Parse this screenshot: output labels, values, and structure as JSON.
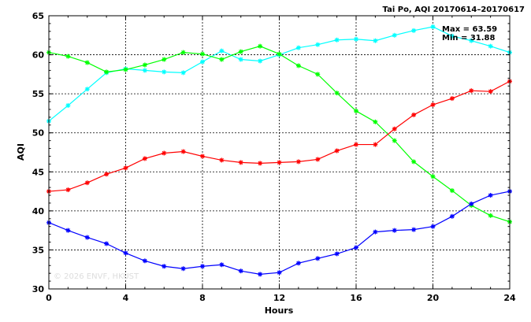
{
  "chart_data": {
    "type": "line",
    "title": "Tai Po, AQI 20170614–20170617",
    "xlabel": "Hours",
    "ylabel": "AQI",
    "xlim": [
      0,
      24
    ],
    "ylim": [
      30,
      65
    ],
    "x_ticks": [
      0,
      4,
      8,
      12,
      16,
      20,
      24
    ],
    "y_ticks": [
      30,
      35,
      40,
      45,
      50,
      55,
      60,
      65
    ],
    "grid": true,
    "annotations": {
      "max_text": "Max = 63.59",
      "min_text": "Min = 31.88"
    },
    "watermark": "© 2026  ENVF, HKUST",
    "x": [
      0,
      1,
      2,
      3,
      4,
      5,
      6,
      7,
      8,
      9,
      10,
      11,
      12,
      13,
      14,
      15,
      16,
      17,
      18,
      19,
      20,
      21,
      22,
      23,
      24
    ],
    "series": [
      {
        "color": "#00ffff",
        "values": [
          51.5,
          53.5,
          55.6,
          57.7,
          58.2,
          58.0,
          57.8,
          57.7,
          59.1,
          60.5,
          59.4,
          59.2,
          60.0,
          60.9,
          61.3,
          61.9,
          62.0,
          61.8,
          62.5,
          63.1,
          63.59,
          62.4,
          61.8,
          61.1,
          60.3
        ]
      },
      {
        "color": "#00ff00",
        "values": [
          60.3,
          59.8,
          59.0,
          57.8,
          58.1,
          58.7,
          59.4,
          60.3,
          60.1,
          59.4,
          60.4,
          61.1,
          60.1,
          58.6,
          57.5,
          55.1,
          52.8,
          51.4,
          49.0,
          46.3,
          44.4,
          42.6,
          40.7,
          39.4,
          38.6
        ]
      },
      {
        "color": "#ff0000",
        "values": [
          42.5,
          42.7,
          43.6,
          44.7,
          45.5,
          46.7,
          47.4,
          47.6,
          47.0,
          46.5,
          46.2,
          46.1,
          46.2,
          46.3,
          46.6,
          47.7,
          48.5,
          48.5,
          50.5,
          52.3,
          53.6,
          54.4,
          55.4,
          55.3,
          56.6
        ]
      },
      {
        "color": "#0000ff",
        "values": [
          38.5,
          37.5,
          36.6,
          35.8,
          34.6,
          33.6,
          32.9,
          32.6,
          32.9,
          33.1,
          32.3,
          31.88,
          32.1,
          33.3,
          33.9,
          34.5,
          35.3,
          37.3,
          37.5,
          37.6,
          38.0,
          39.3,
          40.9,
          42.0,
          42.5
        ]
      }
    ]
  }
}
